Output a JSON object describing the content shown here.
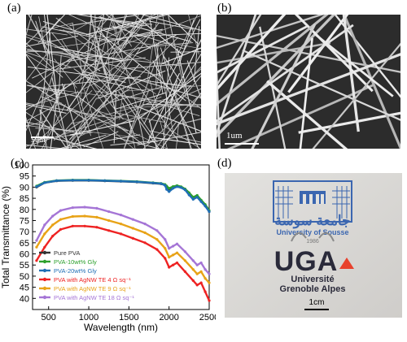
{
  "panels": {
    "a": {
      "letter": "(a)",
      "scale_label": "5um"
    },
    "b": {
      "letter": "(b)",
      "scale_label": "1um"
    },
    "c": {
      "letter": "(c)"
    },
    "d": {
      "letter": "(d)",
      "scale_label": "1cm",
      "logo_top_text": "University of Sousse",
      "logo_year": "1986",
      "logo_main": "UGA",
      "logo_line1": "Université",
      "logo_line2": "Grenoble Alpes"
    }
  },
  "colors": {
    "pure_pva": "#333333",
    "pva_10gly": "#2ca02c",
    "pva_20gly": "#1f6fb5",
    "agnw_4": "#ee2222",
    "agnw_9": "#e8a317",
    "agnw_18": "#a575d6",
    "uga_red": "#e8412c",
    "sousse_blue": "#3b66b0"
  },
  "chart_data": {
    "type": "line",
    "xlabel": "Wavelength (nm)",
    "ylabel": "Total Transmittance (%)",
    "xlim": [
      300,
      2500
    ],
    "ylim": [
      35,
      100
    ],
    "xticks": [
      500,
      1000,
      1500,
      2000,
      2500
    ],
    "yticks": [
      40,
      45,
      50,
      55,
      60,
      65,
      70,
      75,
      80,
      85,
      90,
      95,
      100
    ],
    "legend_position": "bottom-left",
    "series": [
      {
        "name": "Pure PVA",
        "color_key": "pure_pva",
        "x": [
          350,
          450,
          600,
          800,
          1000,
          1200,
          1400,
          1600,
          1800,
          1900,
          1950,
          1970,
          2000,
          2050,
          2100,
          2150,
          2200,
          2250,
          2300,
          2350,
          2400,
          2450,
          2500
        ],
        "y": [
          90,
          92,
          92.8,
          93,
          93,
          92.8,
          92.6,
          92.3,
          91.8,
          91.5,
          91,
          90,
          89,
          90,
          90.5,
          90,
          89,
          87,
          85,
          86,
          84,
          82,
          79
        ]
      },
      {
        "name": "PVA-10wt% Gly",
        "color_key": "pva_10gly",
        "x": [
          350,
          450,
          600,
          800,
          1000,
          1200,
          1400,
          1600,
          1800,
          1900,
          1950,
          1970,
          2000,
          2050,
          2100,
          2150,
          2200,
          2250,
          2300,
          2350,
          2400,
          2450,
          2500
        ],
        "y": [
          90.5,
          92.2,
          93,
          93.2,
          93.2,
          93,
          92.8,
          92.5,
          92,
          91.7,
          91.2,
          90.5,
          89.5,
          90.3,
          90.7,
          90.2,
          89.2,
          87.5,
          85.5,
          86.3,
          84.2,
          82.2,
          79.5
        ]
      },
      {
        "name": "PVA-20wt% Gly",
        "color_key": "pva_20gly",
        "x": [
          350,
          450,
          600,
          800,
          1000,
          1200,
          1400,
          1600,
          1800,
          1900,
          1950,
          1970,
          2000,
          2050,
          2100,
          2150,
          2200,
          2250,
          2300,
          2350,
          2400,
          2450,
          2500
        ],
        "y": [
          90.2,
          92,
          92.9,
          93.1,
          93.1,
          92.9,
          92.7,
          92.4,
          91.9,
          91.6,
          90.8,
          89,
          88,
          89.5,
          90.2,
          89.8,
          88.8,
          86.5,
          84.5,
          85.5,
          83.5,
          81.5,
          79
        ]
      },
      {
        "name": "PVA with AgNW TE 4 Ω sq⁻¹",
        "color_key": "agnw_4",
        "x": [
          350,
          450,
          550,
          650,
          800,
          950,
          1100,
          1250,
          1400,
          1550,
          1700,
          1850,
          1950,
          2000,
          2050,
          2100,
          2200,
          2300,
          2350,
          2400,
          2450,
          2500
        ],
        "y": [
          57,
          63,
          68,
          71,
          72.5,
          72.5,
          72,
          70.5,
          69,
          67,
          65,
          62,
          58,
          54,
          55,
          56,
          52,
          48,
          46,
          47,
          43,
          39
        ]
      },
      {
        "name": "PVA with AgNW TE 9 Ω sq⁻¹",
        "color_key": "agnw_9",
        "x": [
          350,
          450,
          550,
          650,
          800,
          950,
          1100,
          1250,
          1400,
          1550,
          1700,
          1850,
          1950,
          2000,
          2050,
          2100,
          2200,
          2300,
          2350,
          2400,
          2450,
          2500
        ],
        "y": [
          63,
          69,
          73,
          75.5,
          76.8,
          77,
          76.5,
          75,
          73.5,
          71.5,
          69.5,
          66.5,
          62.5,
          58.5,
          59.5,
          60.5,
          57,
          53,
          51,
          52,
          49,
          47
        ]
      },
      {
        "name": "PVA with AgNW TE 18 Ω sq⁻¹",
        "color_key": "agnw_18",
        "x": [
          350,
          450,
          550,
          650,
          800,
          950,
          1100,
          1250,
          1400,
          1550,
          1700,
          1850,
          1950,
          2000,
          2050,
          2100,
          2200,
          2300,
          2350,
          2400,
          2450,
          2500
        ],
        "y": [
          66,
          73,
          77,
          79.5,
          80.8,
          81,
          80.5,
          79,
          77.5,
          75.5,
          73.5,
          70.5,
          66.5,
          62.5,
          63.5,
          64.5,
          61,
          57,
          55,
          56,
          53,
          51
        ]
      }
    ]
  }
}
